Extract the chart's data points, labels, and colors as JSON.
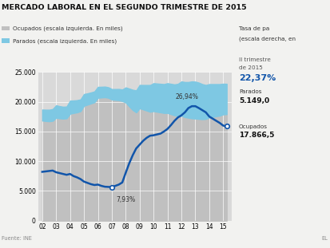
{
  "title": "MERCADO LABORAL EN EL SEGUNDO TRIMESTRE DE 2015",
  "title_fontsize": 7.0,
  "background_color": "#f2f2f0",
  "plot_bg_color": "#d9d9d9",
  "legend_left1": "Ocupados (escala izquierda. En miles)",
  "legend_left2": "Parados (escala izquierda. En miles)",
  "legend_right_line1": "Tasa de pa",
  "legend_right_line2": "(escala derecha, en",
  "xlabel_source": "Fuente: INE",
  "xlabel_right": "EL",
  "years": [
    2002,
    2002.25,
    2002.5,
    2002.75,
    2003,
    2003.25,
    2003.5,
    2003.75,
    2004,
    2004.25,
    2004.5,
    2004.75,
    2005,
    2005.25,
    2005.5,
    2005.75,
    2006,
    2006.25,
    2006.5,
    2006.75,
    2007,
    2007.25,
    2007.5,
    2007.75,
    2008,
    2008.25,
    2008.5,
    2008.75,
    2009,
    2009.25,
    2009.5,
    2009.75,
    2010,
    2010.25,
    2010.5,
    2010.75,
    2011,
    2011.25,
    2011.5,
    2011.75,
    2012,
    2012.25,
    2012.5,
    2012.75,
    2013,
    2013.25,
    2013.5,
    2013.75,
    2014,
    2014.25,
    2014.5,
    2014.75,
    2015,
    2015.25
  ],
  "ocupados": [
    16825,
    16750,
    16700,
    16780,
    17296,
    17200,
    17150,
    17200,
    17971,
    18100,
    18200,
    18400,
    19314,
    19500,
    19700,
    19900,
    20647,
    20700,
    20750,
    20650,
    20356,
    20300,
    20250,
    20100,
    19856,
    19200,
    18600,
    18200,
    18888,
    18700,
    18500,
    18300,
    18408,
    18300,
    18200,
    18100,
    18104,
    17900,
    17700,
    17600,
    17633,
    17400,
    17300,
    17200,
    17163,
    17100,
    17050,
    17100,
    17344,
    17450,
    17550,
    17650,
    17867,
    17900
  ],
  "parados": [
    1849,
    1900,
    1950,
    1980,
    2100,
    2050,
    2000,
    1980,
    2200,
    2100,
    2050,
    1980,
    1968,
    1900,
    1850,
    1820,
    1838,
    1800,
    1780,
    1770,
    1760,
    1820,
    1880,
    1950,
    2540,
    3000,
    3400,
    3700,
    3924,
    4100,
    4300,
    4500,
    4696,
    4750,
    4800,
    4850,
    4999,
    5100,
    5200,
    5400,
    5769,
    5900,
    6000,
    6202,
    6202,
    6100,
    5900,
    5700,
    5610,
    5500,
    5400,
    5300,
    5149,
    5100
  ],
  "tasa_paro": [
    11.5,
    11.6,
    11.7,
    11.8,
    11.4,
    11.2,
    11.0,
    10.8,
    11.0,
    10.5,
    10.2,
    9.8,
    9.2,
    8.9,
    8.6,
    8.4,
    8.5,
    8.2,
    8.0,
    7.95,
    7.93,
    8.2,
    8.5,
    9.0,
    11.3,
    13.5,
    15.4,
    17.0,
    17.9,
    18.8,
    19.5,
    20.0,
    20.1,
    20.3,
    20.5,
    21.0,
    21.6,
    22.5,
    23.5,
    24.3,
    24.8,
    25.5,
    26.5,
    26.94,
    26.94,
    26.5,
    26.0,
    25.5,
    24.5,
    24.0,
    23.5,
    23.0,
    22.37,
    22.2
  ],
  "ylim_left": [
    0,
    25000
  ],
  "ylim_right": [
    0,
    35.0
  ],
  "yticks_left": [
    0,
    5000,
    10000,
    15000,
    20000,
    25000
  ],
  "ytick_labels_left": [
    "0",
    "5.000",
    "10.000",
    "15.000",
    "20.000",
    "25.000"
  ],
  "xtick_years": [
    2002,
    2003,
    2004,
    2005,
    2006,
    2007,
    2008,
    2009,
    2010,
    2011,
    2012,
    2013,
    2014,
    2015
  ],
  "xtick_labels": [
    "02",
    "03",
    "04",
    "05",
    "06",
    "07",
    "08",
    "09",
    "10",
    "11",
    "12",
    "13",
    "14",
    "15"
  ],
  "line_color": "#1155aa",
  "fill_ocupados_color": "#c0c0c0",
  "fill_parados_color": "#7ec8e3",
  "grid_color": "#ffffff",
  "annotation_color": "#333333"
}
